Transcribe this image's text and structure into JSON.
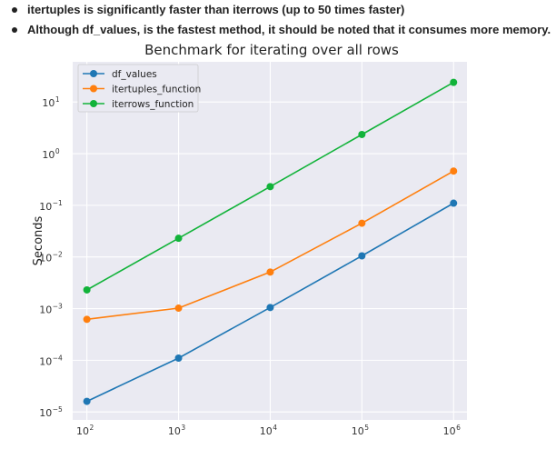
{
  "bullets": [
    "itertuples is significantly faster than iterrows (up to 50 times faster)",
    "Although df_values, is the fastest method, it should be noted that it consumes more memory."
  ],
  "chart_data": {
    "type": "line",
    "title": "Benchmark for iterating over all rows",
    "xlabel": "",
    "ylabel": "Seconds",
    "xscale": "log",
    "yscale": "log",
    "x": [
      100,
      1000,
      10000,
      100000,
      1000000
    ],
    "x_ticks": [
      {
        "base": "10",
        "exp": "2"
      },
      {
        "base": "10",
        "exp": "3"
      },
      {
        "base": "10",
        "exp": "4"
      },
      {
        "base": "10",
        "exp": "5"
      },
      {
        "base": "10",
        "exp": "6"
      }
    ],
    "y_ticks": [
      {
        "base": "10",
        "exp": "−5"
      },
      {
        "base": "10",
        "exp": "−4"
      },
      {
        "base": "10",
        "exp": "−3"
      },
      {
        "base": "10",
        "exp": "−2"
      },
      {
        "base": "10",
        "exp": "−1"
      },
      {
        "base": "10",
        "exp": "0"
      },
      {
        "base": "10",
        "exp": "1"
      }
    ],
    "xlim": [
      70,
      1400000
    ],
    "ylim": [
      7e-06,
      60
    ],
    "grid": true,
    "legend_position": "top-left",
    "series": [
      {
        "name": "df_values",
        "color": "#1f77b4",
        "values": [
          1.6e-05,
          0.00011,
          0.00105,
          0.0105,
          0.11
        ]
      },
      {
        "name": "itertuples_function",
        "color": "#ff7f0e",
        "values": [
          0.00062,
          0.00102,
          0.0051,
          0.045,
          0.46
        ]
      },
      {
        "name": "iterrows_function",
        "color": "#12b33a",
        "values": [
          0.0023,
          0.023,
          0.23,
          2.35,
          24
        ]
      }
    ]
  }
}
